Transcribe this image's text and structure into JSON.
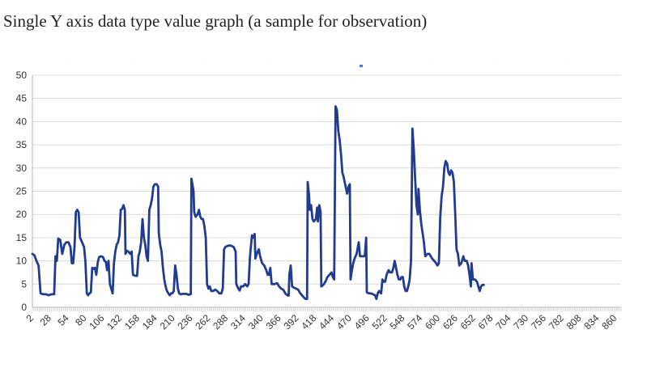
{
  "title": "Single Y axis data type value graph (a sample for observation)",
  "colors": {
    "series": "#1f3c8f",
    "grid": "#d9d9d9",
    "axis": "#b3b3b3",
    "legend_marker": "#4a7ac8",
    "text": "#333333"
  },
  "chart_data": {
    "type": "line",
    "title": "Single Y axis data type value graph (a sample for observation)",
    "xlabel": "",
    "ylabel": "",
    "xlim": [
      2,
      868
    ],
    "ylim": [
      0,
      50
    ],
    "y_ticks": [
      0,
      5,
      10,
      15,
      20,
      25,
      30,
      35,
      40,
      45,
      50
    ],
    "x_tick_labels": [
      2,
      28,
      54,
      80,
      106,
      132,
      158,
      184,
      210,
      236,
      262,
      288,
      314,
      340,
      366,
      392,
      418,
      444,
      470,
      496,
      522,
      548,
      574,
      600,
      626,
      652,
      678,
      704,
      730,
      756,
      782,
      808,
      834,
      860
    ],
    "grid": "horizontal",
    "legend": "top",
    "series": [
      {
        "points": [
          [
            2,
            11.5
          ],
          [
            5,
            11.2
          ],
          [
            8,
            10.0
          ],
          [
            11,
            9.0
          ],
          [
            14,
            3.0
          ],
          [
            18,
            2.8
          ],
          [
            22,
            2.8
          ],
          [
            26,
            2.6
          ],
          [
            30,
            2.8
          ],
          [
            34,
            2.8
          ],
          [
            36,
            11.0
          ],
          [
            38,
            10.0
          ],
          [
            40,
            14.8
          ],
          [
            43,
            14.5
          ],
          [
            46,
            11.5
          ],
          [
            49,
            13.5
          ],
          [
            52,
            14.0
          ],
          [
            55,
            14.0
          ],
          [
            58,
            13.0
          ],
          [
            60,
            9.5
          ],
          [
            62,
            9.5
          ],
          [
            64,
            13.0
          ],
          [
            66,
            20.5
          ],
          [
            68,
            21.0
          ],
          [
            70,
            20.5
          ],
          [
            72,
            15.0
          ],
          [
            75,
            14.0
          ],
          [
            78,
            13.0
          ],
          [
            80,
            9.8
          ],
          [
            82,
            3.0
          ],
          [
            84,
            2.6
          ],
          [
            86,
            3.0
          ],
          [
            88,
            3.2
          ],
          [
            90,
            8.5
          ],
          [
            92,
            8.3
          ],
          [
            94,
            8.5
          ],
          [
            96,
            7.0
          ],
          [
            98,
            9.5
          ],
          [
            100,
            10.8
          ],
          [
            103,
            11.0
          ],
          [
            106,
            10.8
          ],
          [
            108,
            10.0
          ],
          [
            110,
            9.8
          ],
          [
            112,
            8.0
          ],
          [
            114,
            10.0
          ],
          [
            116,
            5.0
          ],
          [
            118,
            4.0
          ],
          [
            120,
            3.0
          ],
          [
            122,
            9.5
          ],
          [
            124,
            12.0
          ],
          [
            126,
            13.5
          ],
          [
            128,
            14.0
          ],
          [
            130,
            15.5
          ],
          [
            132,
            21.0
          ],
          [
            134,
            21.2
          ],
          [
            136,
            22.0
          ],
          [
            138,
            21.0
          ],
          [
            139,
            11.5
          ],
          [
            141,
            12.2
          ],
          [
            143,
            12.0
          ],
          [
            146,
            11.5
          ],
          [
            148,
            12.0
          ],
          [
            150,
            7.0
          ],
          [
            153,
            6.8
          ],
          [
            156,
            6.8
          ],
          [
            158,
            11.0
          ],
          [
            160,
            12.0
          ],
          [
            162,
            14.0
          ],
          [
            164,
            19.0
          ],
          [
            166,
            15.0
          ],
          [
            168,
            13.5
          ],
          [
            170,
            11.0
          ],
          [
            172,
            10.0
          ],
          [
            174,
            21.0
          ],
          [
            176,
            22.0
          ],
          [
            178,
            23.5
          ],
          [
            180,
            26.0
          ],
          [
            182,
            26.5
          ],
          [
            185,
            26.5
          ],
          [
            187,
            26.0
          ],
          [
            188,
            16.0
          ],
          [
            190,
            13.5
          ],
          [
            192,
            12.0
          ],
          [
            194,
            8.5
          ],
          [
            196,
            6.0
          ],
          [
            198,
            4.5
          ],
          [
            200,
            3.5
          ],
          [
            202,
            3.0
          ],
          [
            204,
            2.6
          ],
          [
            206,
            3.0
          ],
          [
            208,
            3.0
          ],
          [
            210,
            3.5
          ],
          [
            212,
            9.0
          ],
          [
            214,
            7.0
          ],
          [
            216,
            4.0
          ],
          [
            218,
            3.0
          ],
          [
            220,
            2.8
          ],
          [
            224,
            2.9
          ],
          [
            228,
            2.9
          ],
          [
            232,
            2.7
          ],
          [
            235,
            2.8
          ],
          [
            236,
            27.7
          ],
          [
            238,
            26.0
          ],
          [
            239,
            25.0
          ],
          [
            240,
            20.5
          ],
          [
            242,
            19.5
          ],
          [
            245,
            20.0
          ],
          [
            247,
            21.0
          ],
          [
            249,
            19.5
          ],
          [
            251,
            19.0
          ],
          [
            253,
            19.0
          ],
          [
            255,
            17.5
          ],
          [
            257,
            15.0
          ],
          [
            259,
            5.0
          ],
          [
            261,
            4.0
          ],
          [
            263,
            4.5
          ],
          [
            265,
            3.5
          ],
          [
            268,
            3.5
          ],
          [
            271,
            3.8
          ],
          [
            274,
            3.5
          ],
          [
            277,
            3.0
          ],
          [
            280,
            3.0
          ],
          [
            282,
            4.0
          ],
          [
            284,
            12.5
          ],
          [
            286,
            13.0
          ],
          [
            290,
            13.3
          ],
          [
            294,
            13.3
          ],
          [
            298,
            13.0
          ],
          [
            301,
            12.0
          ],
          [
            302,
            5.0
          ],
          [
            305,
            4.0
          ],
          [
            307,
            3.6
          ],
          [
            309,
            4.5
          ],
          [
            312,
            4.5
          ],
          [
            315,
            5.0
          ],
          [
            318,
            4.5
          ],
          [
            320,
            5.0
          ],
          [
            322,
            10.5
          ],
          [
            323,
            12.5
          ],
          [
            325,
            15.5
          ],
          [
            327,
            15.0
          ],
          [
            329,
            15.8
          ],
          [
            330,
            10.5
          ],
          [
            332,
            11.5
          ],
          [
            335,
            12.5
          ],
          [
            337,
            11.0
          ],
          [
            340,
            9.5
          ],
          [
            343,
            9.0
          ],
          [
            346,
            8.0
          ],
          [
            348,
            7.0
          ],
          [
            350,
            7.0
          ],
          [
            352,
            8.5
          ],
          [
            354,
            5.0
          ],
          [
            358,
            5.0
          ],
          [
            362,
            5.2
          ],
          [
            365,
            4.5
          ],
          [
            368,
            4.0
          ],
          [
            371,
            3.8
          ],
          [
            374,
            3.0
          ],
          [
            377,
            2.6
          ],
          [
            379,
            2.5
          ],
          [
            380,
            7.0
          ],
          [
            382,
            9.0
          ],
          [
            384,
            4.5
          ],
          [
            387,
            4.2
          ],
          [
            390,
            4.0
          ],
          [
            393,
            3.8
          ],
          [
            396,
            3.0
          ],
          [
            399,
            2.5
          ],
          [
            402,
            2.0
          ],
          [
            404,
            1.8
          ],
          [
            406,
            1.8
          ],
          [
            407,
            27.0
          ],
          [
            409,
            24.0
          ],
          [
            410,
            21.0
          ],
          [
            412,
            22.0
          ],
          [
            414,
            19.0
          ],
          [
            416,
            18.5
          ],
          [
            419,
            19.0
          ],
          [
            421,
            21.5
          ],
          [
            422,
            18.5
          ],
          [
            424,
            22.0
          ],
          [
            426,
            20.5
          ],
          [
            427,
            4.5
          ],
          [
            430,
            4.8
          ],
          [
            433,
            5.5
          ],
          [
            436,
            6.5
          ],
          [
            439,
            7.0
          ],
          [
            442,
            7.5
          ],
          [
            444,
            6.5
          ],
          [
            446,
            6.0
          ],
          [
            448,
            43.3
          ],
          [
            450,
            42.5
          ],
          [
            452,
            38.0
          ],
          [
            454,
            36.0
          ],
          [
            456,
            33.0
          ],
          [
            458,
            29.0
          ],
          [
            460,
            28.0
          ],
          [
            462,
            26.5
          ],
          [
            465,
            24.5
          ],
          [
            467,
            26.0
          ],
          [
            469,
            26.5
          ],
          [
            470,
            6.0
          ],
          [
            472,
            8.0
          ],
          [
            474,
            9.5
          ],
          [
            476,
            10.5
          ],
          [
            479,
            11.5
          ],
          [
            482,
            14.0
          ],
          [
            484,
            11.0
          ],
          [
            488,
            11.0
          ],
          [
            491,
            11.0
          ],
          [
            493,
            15.0
          ],
          [
            494,
            3.2
          ],
          [
            497,
            3.0
          ],
          [
            500,
            3.0
          ],
          [
            503,
            2.8
          ],
          [
            506,
            2.6
          ],
          [
            508,
            1.8
          ],
          [
            510,
            3.0
          ],
          [
            512,
            3.5
          ],
          [
            515,
            3.0
          ],
          [
            517,
            6.0
          ],
          [
            519,
            5.5
          ],
          [
            521,
            5.5
          ],
          [
            523,
            7.0
          ],
          [
            526,
            8.0
          ],
          [
            528,
            7.5
          ],
          [
            531,
            7.5
          ],
          [
            533,
            8.5
          ],
          [
            535,
            10.0
          ],
          [
            537,
            8.5
          ],
          [
            539,
            7.0
          ],
          [
            541,
            6.0
          ],
          [
            543,
            6.0
          ],
          [
            545,
            6.5
          ],
          [
            547,
            6.5
          ],
          [
            549,
            4.5
          ],
          [
            551,
            3.5
          ],
          [
            553,
            3.5
          ],
          [
            555,
            4.5
          ],
          [
            557,
            6.0
          ],
          [
            559,
            10.0
          ],
          [
            561,
            38.5
          ],
          [
            563,
            34.0
          ],
          [
            565,
            28.0
          ],
          [
            567,
            22.0
          ],
          [
            569,
            20.0
          ],
          [
            570,
            25.5
          ],
          [
            572,
            21.0
          ],
          [
            574,
            18.0
          ],
          [
            576,
            16.0
          ],
          [
            578,
            14.0
          ],
          [
            580,
            11.0
          ],
          [
            583,
            11.5
          ],
          [
            586,
            11.5
          ],
          [
            588,
            11.0
          ],
          [
            590,
            10.5
          ],
          [
            593,
            10.0
          ],
          [
            596,
            9.5
          ],
          [
            598,
            9.0
          ],
          [
            600,
            9.5
          ],
          [
            602,
            19.5
          ],
          [
            604,
            24.0
          ],
          [
            606,
            26.0
          ],
          [
            608,
            30.0
          ],
          [
            610,
            31.5
          ],
          [
            612,
            31.0
          ],
          [
            614,
            29.0
          ],
          [
            616,
            28.5
          ],
          [
            618,
            29.5
          ],
          [
            620,
            29.0
          ],
          [
            622,
            27.0
          ],
          [
            624,
            20.0
          ],
          [
            626,
            12.5
          ],
          [
            628,
            11.5
          ],
          [
            630,
            9.0
          ],
          [
            633,
            9.5
          ],
          [
            636,
            11.0
          ],
          [
            638,
            10.0
          ],
          [
            641,
            10.0
          ],
          [
            643,
            9.0
          ],
          [
            645,
            7.0
          ],
          [
            647,
            4.5
          ],
          [
            648,
            9.5
          ],
          [
            650,
            6.0
          ],
          [
            653,
            6.0
          ],
          [
            656,
            5.5
          ],
          [
            658,
            4.5
          ],
          [
            660,
            3.5
          ],
          [
            662,
            4.5
          ],
          [
            664,
            4.8
          ],
          [
            666,
            4.8
          ]
        ]
      }
    ]
  }
}
